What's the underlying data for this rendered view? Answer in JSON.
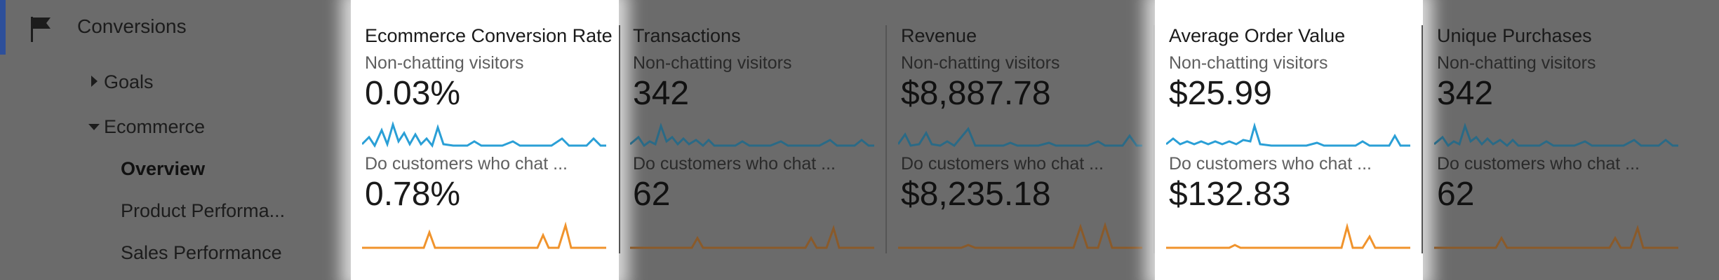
{
  "sidebar": {
    "flag_icon": "flag-icon",
    "conversions": "Conversions",
    "goals": "Goals",
    "ecommerce": "Ecommerce",
    "overview": "Overview",
    "product_performance": "Product Performa...",
    "sales_performance": "Sales Performance",
    "active_color": "#2d4f9a"
  },
  "segments": {
    "seg1": "Non-chatting visitors",
    "seg2": "Do customers who chat ..."
  },
  "colors": {
    "series1": "#2a9fd6",
    "series2": "#f0932c",
    "highlight": "#ffffff",
    "dim": "#6b6b6b"
  },
  "metrics": [
    {
      "title": "Ecommerce Conversion Rate",
      "value1": "0.03%",
      "value2": "0.78%",
      "highlighted": true
    },
    {
      "title": "Transactions",
      "value1": "342",
      "value2": "62",
      "highlighted": false
    },
    {
      "title": "Revenue",
      "value1": "$8,887.78",
      "value2": "$8,235.18",
      "highlighted": false
    },
    {
      "title": "Average Order Value",
      "value1": "$25.99",
      "value2": "$132.83",
      "highlighted": true
    },
    {
      "title": "Unique Purchases",
      "value1": "342",
      "value2": "62",
      "highlighted": false
    }
  ]
}
